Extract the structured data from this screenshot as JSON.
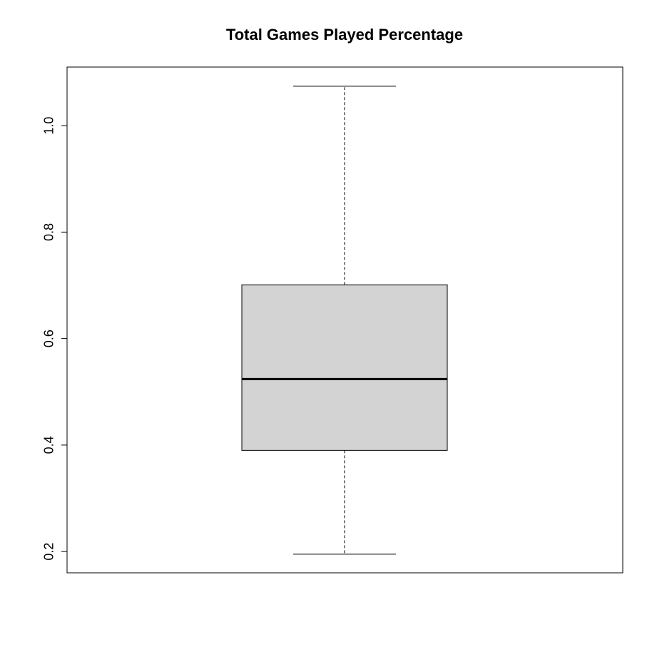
{
  "chart_data": {
    "type": "box",
    "title": "Total Games Played Percentage",
    "xlabel": "",
    "ylabel": "",
    "ylim": [
      0.16,
      1.11
    ],
    "yticks": [
      0.2,
      0.4,
      0.6,
      0.8,
      1.0
    ],
    "ytick_labels": [
      "0.2",
      "0.4",
      "0.6",
      "0.8",
      "1.0"
    ],
    "grid": false,
    "box": {
      "min": 0.195,
      "q1": 0.39,
      "median": 0.524,
      "q3": 0.701,
      "max": 1.074
    },
    "colors": {
      "box_fill": "#d3d3d3",
      "stroke": "#000000"
    }
  }
}
